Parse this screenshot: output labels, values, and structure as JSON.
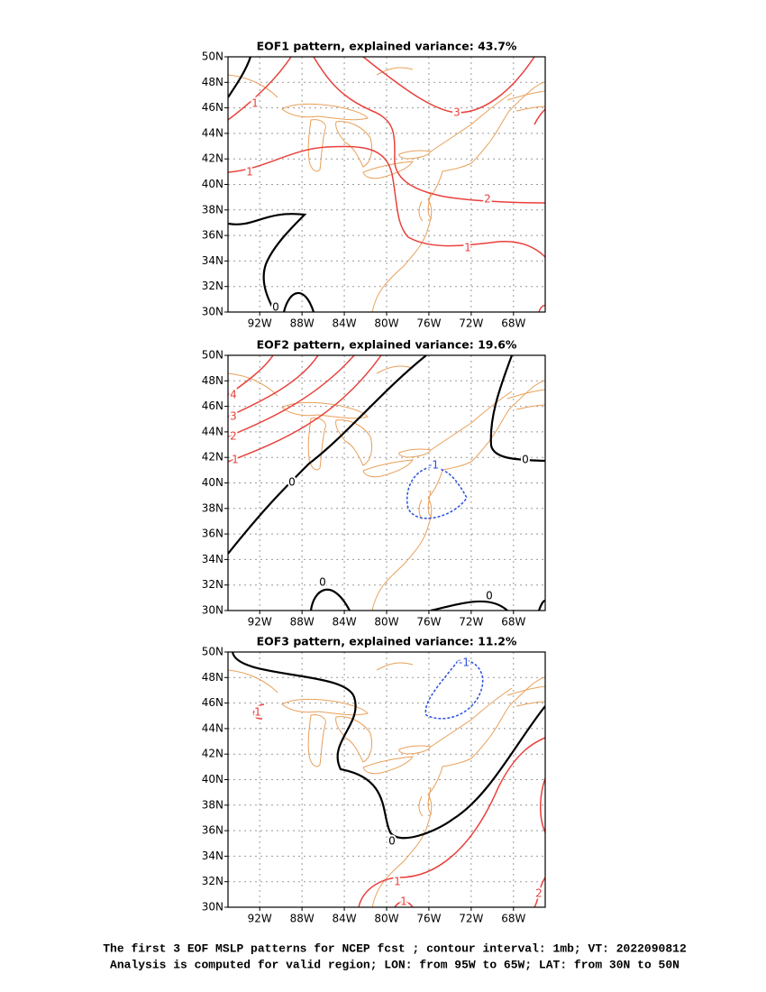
{
  "axes": {
    "xlim": [
      -95,
      -65
    ],
    "ylim": [
      30,
      50
    ],
    "xticks": [
      {
        "value": -92,
        "label": "92W"
      },
      {
        "value": -88,
        "label": "88W"
      },
      {
        "value": -84,
        "label": "84W"
      },
      {
        "value": -80,
        "label": "80W"
      },
      {
        "value": -76,
        "label": "76W"
      },
      {
        "value": -72,
        "label": "72W"
      },
      {
        "value": -68,
        "label": "68W"
      }
    ],
    "yticks": [
      {
        "value": 30,
        "label": "30N"
      },
      {
        "value": 32,
        "label": "32N"
      },
      {
        "value": 34,
        "label": "34N"
      },
      {
        "value": 36,
        "label": "36N"
      },
      {
        "value": 38,
        "label": "38N"
      },
      {
        "value": 40,
        "label": "40N"
      },
      {
        "value": 42,
        "label": "42N"
      },
      {
        "value": 44,
        "label": "44N"
      },
      {
        "value": 46,
        "label": "46N"
      },
      {
        "value": 48,
        "label": "48N"
      },
      {
        "value": 50,
        "label": "50N"
      }
    ]
  },
  "panels": [
    {
      "title": "EOF1 pattern, explained variance: 43.7%",
      "contour_labels": [
        "1",
        "3",
        "1",
        "2",
        "1",
        "0"
      ]
    },
    {
      "title": "EOF2 pattern, explained variance: 19.6%",
      "contour_labels": [
        "4",
        "3",
        "2",
        "1",
        "0",
        "0",
        "0",
        "0",
        "-1"
      ]
    },
    {
      "title": "EOF3 pattern, explained variance: 11.2%",
      "contour_labels": [
        "0",
        "1",
        "1",
        "1",
        "2",
        "-1"
      ]
    }
  ],
  "caption": [
    "The first 3 EOF MSLP patterns for NCEP fcst ; contour interval: 1mb; VT: 2022090812",
    "Analysis is computed for valid region; LON: from 95W to 65W; LAT: from 30N to 50N"
  ]
}
